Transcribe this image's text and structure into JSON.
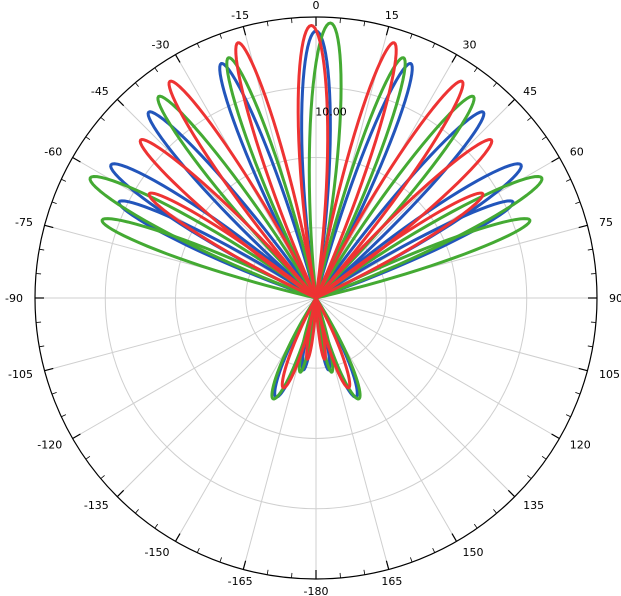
{
  "chart_data": {
    "type": "polar",
    "angle_ticks": [
      0,
      15,
      30,
      45,
      60,
      75,
      90,
      105,
      120,
      135,
      150,
      165,
      -180,
      -165,
      -150,
      -135,
      -120,
      -105,
      -90,
      -75,
      -60,
      -45,
      -30,
      -15
    ],
    "angle_labels": [
      "0",
      "15",
      "30",
      "45",
      "60",
      "75",
      "90",
      "105",
      "120",
      "135",
      "150",
      "165",
      "-180",
      "-165",
      "-150",
      "-135",
      "-120",
      "-105",
      "-90",
      "-75",
      "-60",
      "-45",
      "-30",
      "-15"
    ],
    "radial_label": "10.00",
    "grid": true,
    "series": [
      {
        "color": "#2255bb",
        "lobes": [
          {
            "center": 0,
            "half_width": 9,
            "level": 0.95
          },
          {
            "center": 22,
            "half_width": 7,
            "level": 0.9
          },
          {
            "center": -22,
            "half_width": 7,
            "level": 0.9
          },
          {
            "center": 42,
            "half_width": 7,
            "level": 0.89
          },
          {
            "center": -42,
            "half_width": 7,
            "level": 0.89
          },
          {
            "center": 57,
            "half_width": 8,
            "level": 0.87
          },
          {
            "center": -57,
            "half_width": 8,
            "level": 0.87
          },
          {
            "center": 64,
            "half_width": 7,
            "level": 0.78
          },
          {
            "center": -64,
            "half_width": 7,
            "level": 0.78
          },
          {
            "center": 158,
            "half_width": 10,
            "level": 0.38
          },
          {
            "center": -158,
            "half_width": 10,
            "level": 0.38
          },
          {
            "center": 170,
            "half_width": 7,
            "level": 0.26
          },
          {
            "center": -170,
            "half_width": 7,
            "level": 0.26
          }
        ]
      },
      {
        "color": "#44aa33",
        "lobes": [
          {
            "center": 3,
            "half_width": 9,
            "level": 0.98
          },
          {
            "center": 20,
            "half_width": 7,
            "level": 0.91
          },
          {
            "center": -20,
            "half_width": 7,
            "level": 0.91
          },
          {
            "center": 38,
            "half_width": 7,
            "level": 0.91
          },
          {
            "center": -38,
            "half_width": 7,
            "level": 0.91
          },
          {
            "center": 62,
            "half_width": 8,
            "level": 0.91
          },
          {
            "center": -62,
            "half_width": 8,
            "level": 0.91
          },
          {
            "center": 70,
            "half_width": 7,
            "level": 0.81
          },
          {
            "center": -70,
            "half_width": 7,
            "level": 0.81
          },
          {
            "center": 157,
            "half_width": 10,
            "level": 0.39
          },
          {
            "center": -157,
            "half_width": 10,
            "level": 0.39
          },
          {
            "center": 168,
            "half_width": 7,
            "level": 0.27
          },
          {
            "center": -168,
            "half_width": 7,
            "level": 0.27
          }
        ]
      },
      {
        "color": "#ee3333",
        "lobes": [
          {
            "center": -1,
            "half_width": 9,
            "level": 0.97
          },
          {
            "center": 17,
            "half_width": 7,
            "level": 0.95
          },
          {
            "center": -17,
            "half_width": 7,
            "level": 0.95
          },
          {
            "center": 34,
            "half_width": 7,
            "level": 0.93
          },
          {
            "center": -34,
            "half_width": 7,
            "level": 0.93
          },
          {
            "center": 48,
            "half_width": 7,
            "level": 0.84
          },
          {
            "center": -48,
            "half_width": 7,
            "level": 0.84
          },
          {
            "center": 58,
            "half_width": 7,
            "level": 0.7
          },
          {
            "center": -58,
            "half_width": 7,
            "level": 0.7
          },
          {
            "center": 160,
            "half_width": 9,
            "level": 0.34
          },
          {
            "center": -160,
            "half_width": 9,
            "level": 0.34
          },
          {
            "center": 172,
            "half_width": 6,
            "level": 0.22
          },
          {
            "center": -172,
            "half_width": 6,
            "level": 0.22
          }
        ]
      }
    ]
  }
}
